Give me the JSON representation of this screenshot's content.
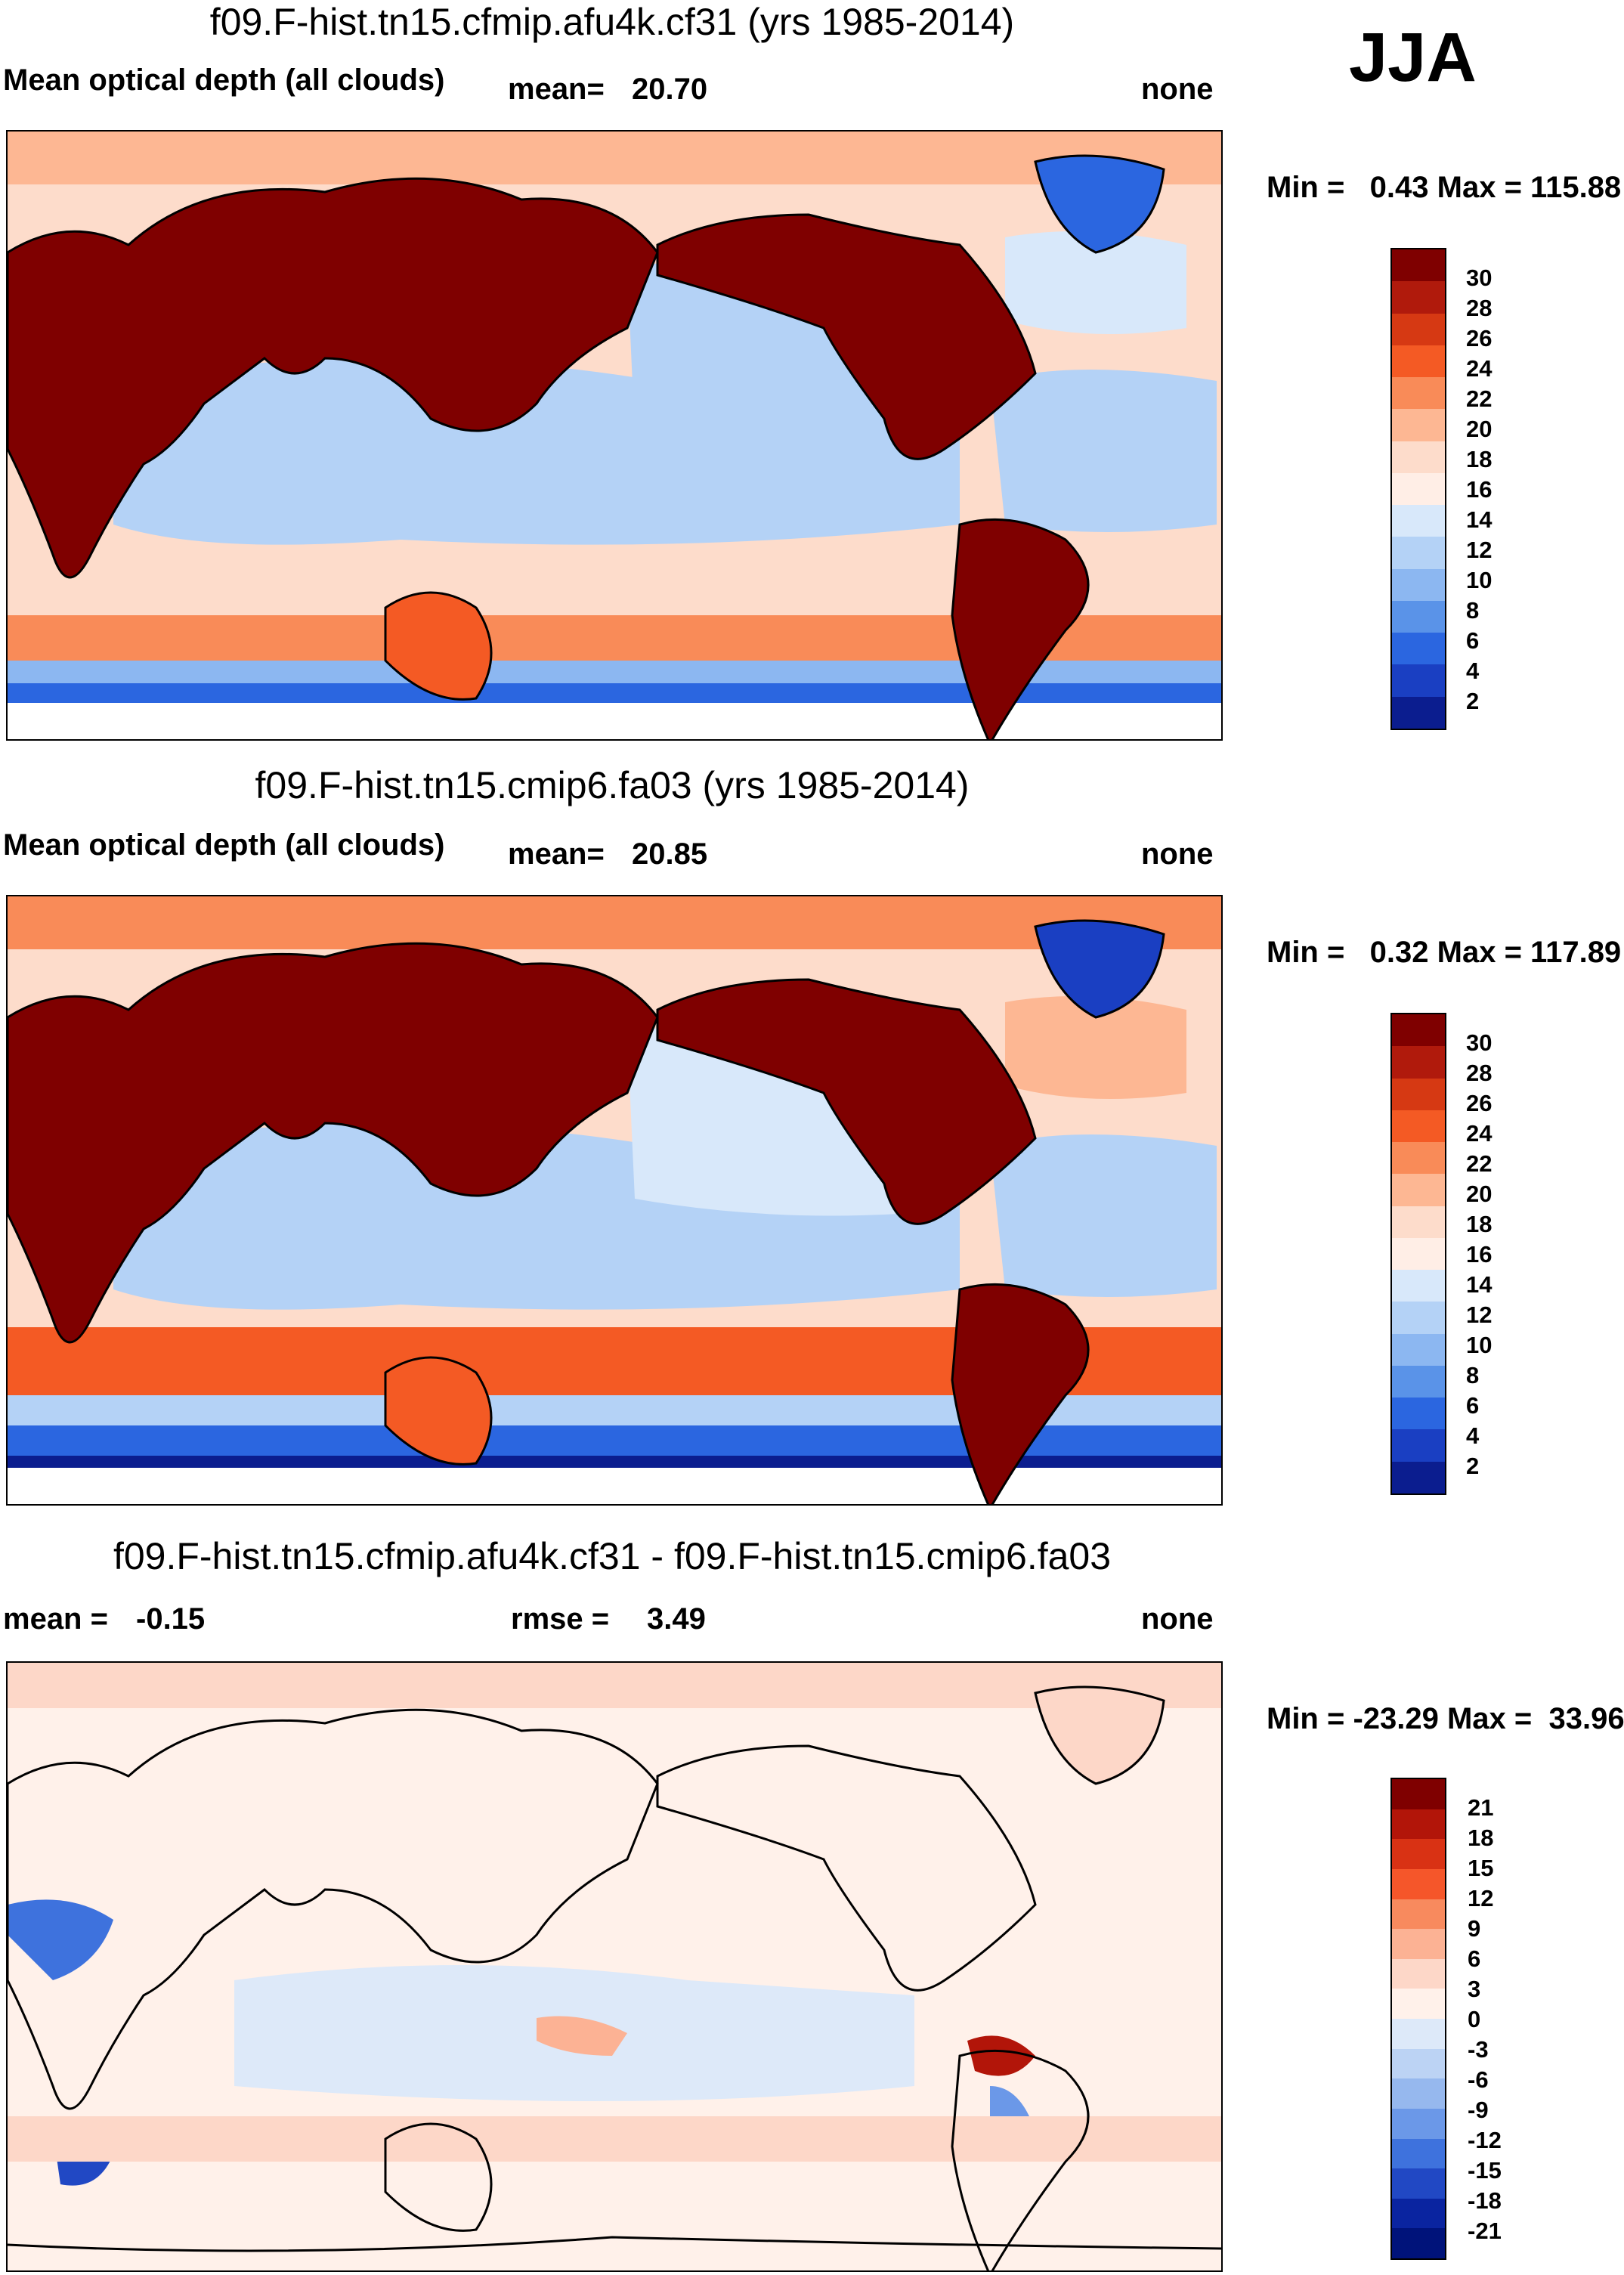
{
  "season": "JJA",
  "colors": {
    "scale15": [
      "#7f0000",
      "#b01a0c",
      "#d63913",
      "#f45a24",
      "#f98b58",
      "#fdb793",
      "#fddccb",
      "#ffeee6",
      "#d8e8fa",
      "#b4d2f6",
      "#8cb7f1",
      "#5a93e8",
      "#2b66e0",
      "#1a3fc2",
      "#0b1d8f"
    ],
    "diff": [
      "#7f0000",
      "#b21509",
      "#d93214",
      "#f5562a",
      "#f88a5e",
      "#fcb294",
      "#fdd7c8",
      "#fff1ea",
      "#dde9f9",
      "#bcd3f4",
      "#96b8ee",
      "#6b98e8",
      "#3e72dd",
      "#2148c4",
      "#0a24a0",
      "#00137a"
    ],
    "landline": "#000000"
  },
  "panels": [
    {
      "title": "f09.F-hist.tn15.cfmip.afu4k.cf31 (yrs 1985-2014)",
      "left_label": "Mean optical depth (all clouds)",
      "stat1_label": "mean=",
      "stat1_value": "20.70",
      "units": "none",
      "minmax": "Min =   0.43 Max = 115.88",
      "colorbar_labels": [
        "30",
        "28",
        "26",
        "24",
        "22",
        "20",
        "18",
        "16",
        "14",
        "12",
        "10",
        "8",
        "6",
        "4",
        "2"
      ]
    },
    {
      "title": "f09.F-hist.tn15.cmip6.fa03 (yrs 1985-2014)",
      "left_label": "Mean optical depth (all clouds)",
      "stat1_label": "mean=",
      "stat1_value": "20.85",
      "units": "none",
      "minmax": "Min =   0.32 Max = 117.89",
      "colorbar_labels": [
        "30",
        "28",
        "26",
        "24",
        "22",
        "20",
        "18",
        "16",
        "14",
        "12",
        "10",
        "8",
        "6",
        "4",
        "2"
      ]
    },
    {
      "title": "f09.F-hist.tn15.cfmip.afu4k.cf31 - f09.F-hist.tn15.cmip6.fa03",
      "mean_label": "mean =",
      "mean_value": "-0.15",
      "rmse_label": "rmse =",
      "rmse_value": "3.49",
      "units": "none",
      "minmax": "Min = -23.29 Max =  33.96",
      "colorbar_labels": [
        "21",
        "18",
        "15",
        "12",
        "9",
        "6",
        "3",
        "0",
        "-3",
        "-6",
        "-9",
        "-12",
        "-15",
        "-18",
        "-21"
      ]
    }
  ]
}
